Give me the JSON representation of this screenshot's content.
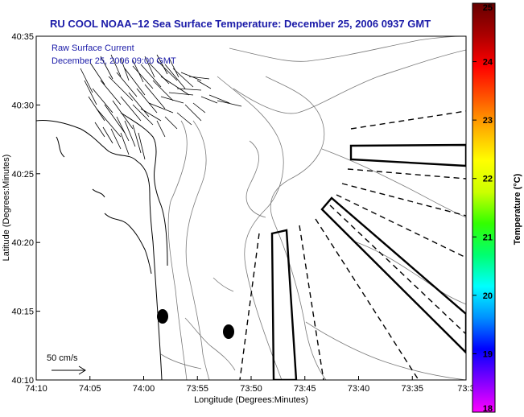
{
  "title": "RU COOL  NOAA−12  Sea Surface Temperature:  December 25, 2006 0937 GMT",
  "legend": {
    "line1": "Raw Surface Current",
    "line2": "December 25, 2006 09:00 GMT"
  },
  "scale": {
    "label": "50 cm/s"
  },
  "axes": {
    "xlabel": "Longitude (Degrees:Minutes)",
    "ylabel": "Latitude (Degrees:Minutes)",
    "xticks": [
      "74:10",
      "74:05",
      "74:00",
      "73:55",
      "73:50",
      "73:45",
      "73:40",
      "73:35",
      "73:3"
    ],
    "yticks": [
      "40:35",
      "40:30",
      "40:25",
      "40:20",
      "40:15",
      "40:10"
    ]
  },
  "colorbar": {
    "label": "Temperature (°C)",
    "ticks": [
      "25",
      "24",
      "23",
      "22",
      "21",
      "20",
      "19",
      "18"
    ],
    "range": [
      18,
      25
    ],
    "colors": [
      "#ff00ff",
      "#7f00ff",
      "#0000ff",
      "#0090ff",
      "#00ffff",
      "#00ff70",
      "#33ff00",
      "#ccff00",
      "#ffff00",
      "#ffb000",
      "#ff5500",
      "#ff0000",
      "#aa0000",
      "#660000"
    ]
  },
  "colors": {
    "title": "#1a1aa8",
    "frame": "#000000",
    "contour": "#777777"
  }
}
